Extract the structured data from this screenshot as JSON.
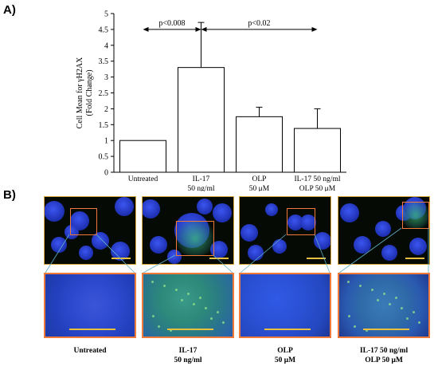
{
  "panels": {
    "a_label": "A)",
    "b_label": "B)"
  },
  "chart_data": {
    "type": "bar",
    "ylabel_lines": [
      "Cell Mean for γH2AX",
      "(Fold Change)"
    ],
    "ylim": [
      0,
      5
    ],
    "yticks": [
      "0",
      "0.5",
      "1",
      "1.5",
      "2",
      "2.5",
      "3",
      "3.5",
      "4",
      "4.5",
      "5"
    ],
    "categories": [
      {
        "line1": "Untreated",
        "line2": ""
      },
      {
        "line1": "IL-17",
        "line2": "50 ng/ml"
      },
      {
        "line1": "OLP",
        "line2": "50 μM"
      },
      {
        "line1": "IL-17 50 ng/ml",
        "line2": "OLP 50 μM"
      }
    ],
    "values": [
      1.0,
      3.3,
      1.75,
      1.38
    ],
    "errors": [
      0,
      1.42,
      0.3,
      0.62
    ],
    "bar_color": "#ffffff",
    "annotations": [
      {
        "text": "p<0.008",
        "from": 0,
        "to": 1
      },
      {
        "text": "p<0.02",
        "from": 1,
        "to": 3
      }
    ],
    "grid": false
  },
  "micrographs": {
    "captions": [
      "Untreated",
      "IL-17\n50 ng/ml",
      "OLP\n50 μM",
      "IL-17 50 ng/ml\nOLP 50 μM"
    ],
    "frame_color": "#d8a83a",
    "zoom_frame_color": "#f07a3a",
    "scale_bar_color": "#e8c040"
  }
}
